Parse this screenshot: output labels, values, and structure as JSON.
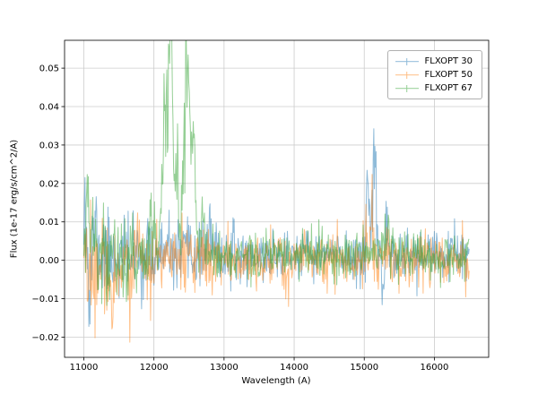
{
  "chart_data": {
    "type": "line",
    "title": "",
    "xlabel": "Wavelength (A)",
    "ylabel": "Flux (1e-17 erg/s/cm^2/A)",
    "xlim": [
      10725,
      16775
    ],
    "ylim": [
      -0.02525,
      0.05725
    ],
    "xticks": [
      11000,
      12000,
      13000,
      14000,
      15000,
      16000
    ],
    "yticks": [
      -0.02,
      -0.01,
      0.0,
      0.01,
      0.02,
      0.03,
      0.04,
      0.05
    ],
    "grid": true,
    "grid_color": "#cccccc",
    "legend_position": "upper right",
    "x_range": [
      11000,
      16500
    ],
    "x_step": 8,
    "series": [
      {
        "name": "FLXOPT 30",
        "color": "#1f77b4",
        "alpha": 0.5,
        "seed": 11,
        "mean": 0.0012,
        "peak_jitter": 0.15,
        "noise_envelope": [
          [
            11000,
            0.0062
          ],
          [
            11700,
            0.005
          ],
          [
            12600,
            0.004
          ],
          [
            13400,
            0.0031
          ],
          [
            14600,
            0.0029
          ],
          [
            15000,
            0.0046
          ],
          [
            15350,
            0.004
          ],
          [
            15700,
            0.003
          ],
          [
            16500,
            0.0033
          ]
        ],
        "peaks": [
          [
            11015,
            0.026,
            12
          ],
          [
            11080,
            -0.015,
            10
          ],
          [
            11160,
            0.009,
            18
          ],
          [
            12780,
            0.005,
            40
          ],
          [
            15060,
            0.012,
            26
          ],
          [
            15155,
            0.014,
            20
          ],
          [
            15110,
            0.005,
            70
          ],
          [
            15258,
            -0.01,
            9
          ]
        ]
      },
      {
        "name": "FLXOPT 50",
        "color": "#ff7f0e",
        "alpha": 0.5,
        "seed": 22,
        "mean": 0.0002,
        "peak_jitter": 0.15,
        "noise_envelope": [
          [
            11000,
            0.0058
          ],
          [
            11900,
            0.0048
          ],
          [
            12900,
            0.0038
          ],
          [
            14200,
            0.0033
          ],
          [
            15100,
            0.004
          ],
          [
            16500,
            0.0034
          ]
        ],
        "peaks": [
          [
            11120,
            -0.007,
            25
          ],
          [
            11400,
            -0.005,
            60
          ],
          [
            11650,
            -0.006,
            30
          ],
          [
            13900,
            -0.005,
            30
          ],
          [
            15120,
            0.006,
            50
          ],
          [
            16390,
            0.005,
            22
          ]
        ]
      },
      {
        "name": "FLXOPT 67",
        "color": "#2ca02c",
        "alpha": 0.5,
        "seed": 33,
        "mean": 0.0012,
        "peak_jitter": 0.16,
        "noise_envelope": [
          [
            11000,
            0.006
          ],
          [
            11900,
            0.0048
          ],
          [
            12800,
            0.0034
          ],
          [
            14200,
            0.0029
          ],
          [
            15300,
            0.0033
          ],
          [
            16500,
            0.0024
          ]
        ],
        "peaks": [
          [
            11055,
            0.016,
            20
          ],
          [
            11115,
            0.011,
            14
          ],
          [
            11600,
            -0.017,
            12
          ],
          [
            11950,
            0.009,
            35
          ],
          [
            12160,
            0.036,
            30
          ],
          [
            12235,
            0.046,
            28
          ],
          [
            12330,
            0.012,
            30
          ],
          [
            12480,
            0.044,
            40
          ],
          [
            12570,
            0.028,
            22
          ],
          [
            12360,
            0.007,
            200
          ],
          [
            12705,
            0.008,
            22
          ],
          [
            15320,
            0.0045,
            70
          ]
        ]
      }
    ]
  }
}
